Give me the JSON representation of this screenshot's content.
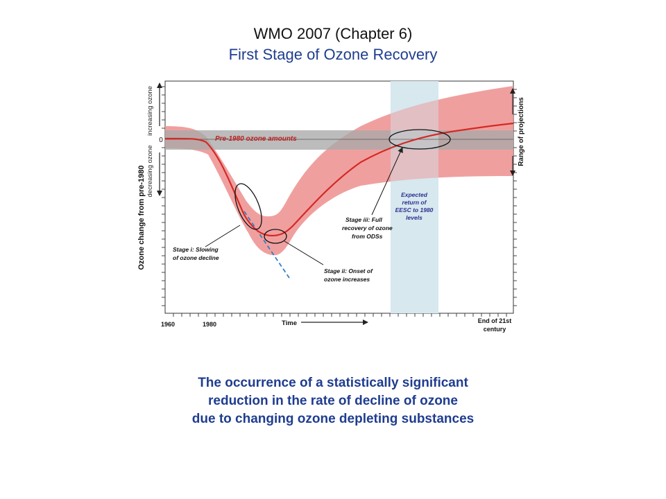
{
  "slide": {
    "title_line1": "WMO 2007 (Chapter 6)",
    "title_line2": "First Stage of Ozone Recovery",
    "caption_lines": [
      "The occurrence of a statistically significant",
      "reduction in the rate of decline of ozone",
      "due to changing ozone depleting substances"
    ]
  },
  "chart_data": {
    "type": "line",
    "title": "",
    "ylabel": "Ozone change from pre-1980",
    "y_up_label": "increasing ozone",
    "y_down_label": "decreasing ozone",
    "y_zero_label": "0",
    "xlabel": "Time",
    "x_tick_labels": [
      "1960",
      "1980"
    ],
    "x_end_label": [
      "End of 21st",
      "century"
    ],
    "right_axis_label": "Range of projections",
    "reference_band_label": "Pre-1980 ozone amounts",
    "eesc_label": [
      "Expected",
      "return of",
      "EESC to 1980",
      "levels"
    ],
    "annotations": {
      "stage_i": [
        "Stage i: Slowing",
        "of ozone decline"
      ],
      "stage_ii": [
        "Stage ii: Onset of",
        "ozone increases"
      ],
      "stage_iii": [
        "Stage iii: Full",
        "recovery of ozone",
        "from ODSs"
      ]
    },
    "colors": {
      "curve": "#d42a24",
      "uncertainty_band": "#ee9595",
      "reference_band": "#a9a9a9",
      "eesc_band": "#d7e8ef",
      "dashed_extrapolation": "#2e7fc6",
      "eesc_text": "#2b2f8f"
    }
  }
}
